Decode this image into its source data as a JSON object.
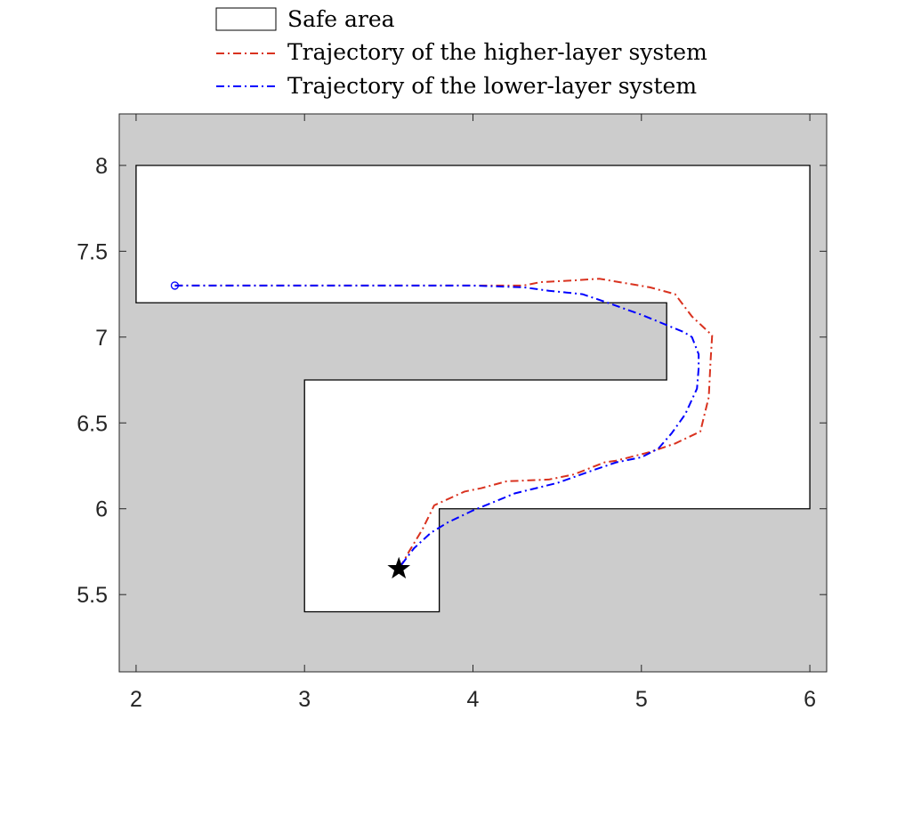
{
  "chart_data": {
    "type": "line",
    "title": "",
    "xlabel": "",
    "ylabel": "",
    "xlim": [
      1.9,
      6.1
    ],
    "ylim": [
      5.05,
      8.3
    ],
    "xticks": [
      2,
      3,
      4,
      5,
      6
    ],
    "yticks": [
      5.5,
      6,
      6.5,
      7,
      7.5,
      8
    ],
    "xtick_labels": [
      "2",
      "3",
      "4",
      "5",
      "6"
    ],
    "ytick_labels": [
      "5.5",
      "6",
      "6.5",
      "7",
      "7.5",
      "8"
    ],
    "grid": false,
    "legend_position": "top (outside plot area)",
    "colors": {
      "unsafe_background": "#cccccc",
      "safe_area": "#ffffff",
      "higher_layer": "#d9321f",
      "lower_layer": "#0000ff",
      "goal_star": "#000000"
    },
    "safe_area": {
      "legend_label": "Safe area",
      "polygon": [
        [
          2,
          8
        ],
        [
          6,
          8
        ],
        [
          6,
          6
        ],
        [
          3.8,
          6
        ],
        [
          3.8,
          5.4
        ],
        [
          3,
          5.4
        ],
        [
          3,
          6.75
        ],
        [
          5.15,
          6.75
        ],
        [
          5.15,
          7.2
        ],
        [
          2,
          7.2
        ]
      ]
    },
    "series": [
      {
        "name": "Trajectory of the higher-layer system",
        "line_style": "dash-dot",
        "points": [
          [
            2.23,
            7.3
          ],
          [
            2.6,
            7.3
          ],
          [
            3.0,
            7.3
          ],
          [
            3.5,
            7.3
          ],
          [
            4.0,
            7.3
          ],
          [
            4.3,
            7.3
          ],
          [
            4.4,
            7.32
          ],
          [
            4.6,
            7.33
          ],
          [
            4.75,
            7.34
          ],
          [
            5.05,
            7.29
          ],
          [
            5.2,
            7.25
          ],
          [
            5.3,
            7.12
          ],
          [
            5.42,
            7.01
          ],
          [
            5.41,
            6.85
          ],
          [
            5.4,
            6.65
          ],
          [
            5.35,
            6.45
          ],
          [
            5.2,
            6.38
          ],
          [
            5.05,
            6.33
          ],
          [
            4.85,
            6.28
          ],
          [
            4.78,
            6.27
          ],
          [
            4.6,
            6.2
          ],
          [
            4.45,
            6.17
          ],
          [
            4.2,
            6.16
          ],
          [
            4.05,
            6.12
          ],
          [
            3.95,
            6.1
          ],
          [
            3.77,
            6.02
          ],
          [
            3.7,
            5.88
          ],
          [
            3.62,
            5.75
          ],
          [
            3.58,
            5.68
          ],
          [
            3.56,
            5.65
          ]
        ]
      },
      {
        "name": "Trajectory of the lower-layer system",
        "line_style": "dash-dot",
        "points": [
          [
            2.23,
            7.3
          ],
          [
            2.6,
            7.3
          ],
          [
            3.0,
            7.3
          ],
          [
            3.5,
            7.3
          ],
          [
            4.0,
            7.3
          ],
          [
            4.3,
            7.29
          ],
          [
            4.45,
            7.27
          ],
          [
            4.65,
            7.25
          ],
          [
            4.8,
            7.2
          ],
          [
            5.0,
            7.13
          ],
          [
            5.15,
            7.07
          ],
          [
            5.25,
            7.03
          ],
          [
            5.3,
            7.0
          ],
          [
            5.34,
            6.9
          ],
          [
            5.34,
            6.82
          ],
          [
            5.33,
            6.7
          ],
          [
            5.26,
            6.55
          ],
          [
            5.18,
            6.44
          ],
          [
            5.1,
            6.35
          ],
          [
            5.0,
            6.3
          ],
          [
            4.85,
            6.27
          ],
          [
            4.7,
            6.22
          ],
          [
            4.5,
            6.15
          ],
          [
            4.25,
            6.09
          ],
          [
            4.0,
            5.99
          ],
          [
            3.85,
            5.92
          ],
          [
            3.75,
            5.86
          ],
          [
            3.65,
            5.77
          ],
          [
            3.58,
            5.68
          ],
          [
            3.56,
            5.65
          ]
        ],
        "start_marker": "circle"
      }
    ],
    "markers": [
      {
        "label": "goal",
        "shape": "star",
        "x": 3.56,
        "y": 5.65
      }
    ]
  }
}
